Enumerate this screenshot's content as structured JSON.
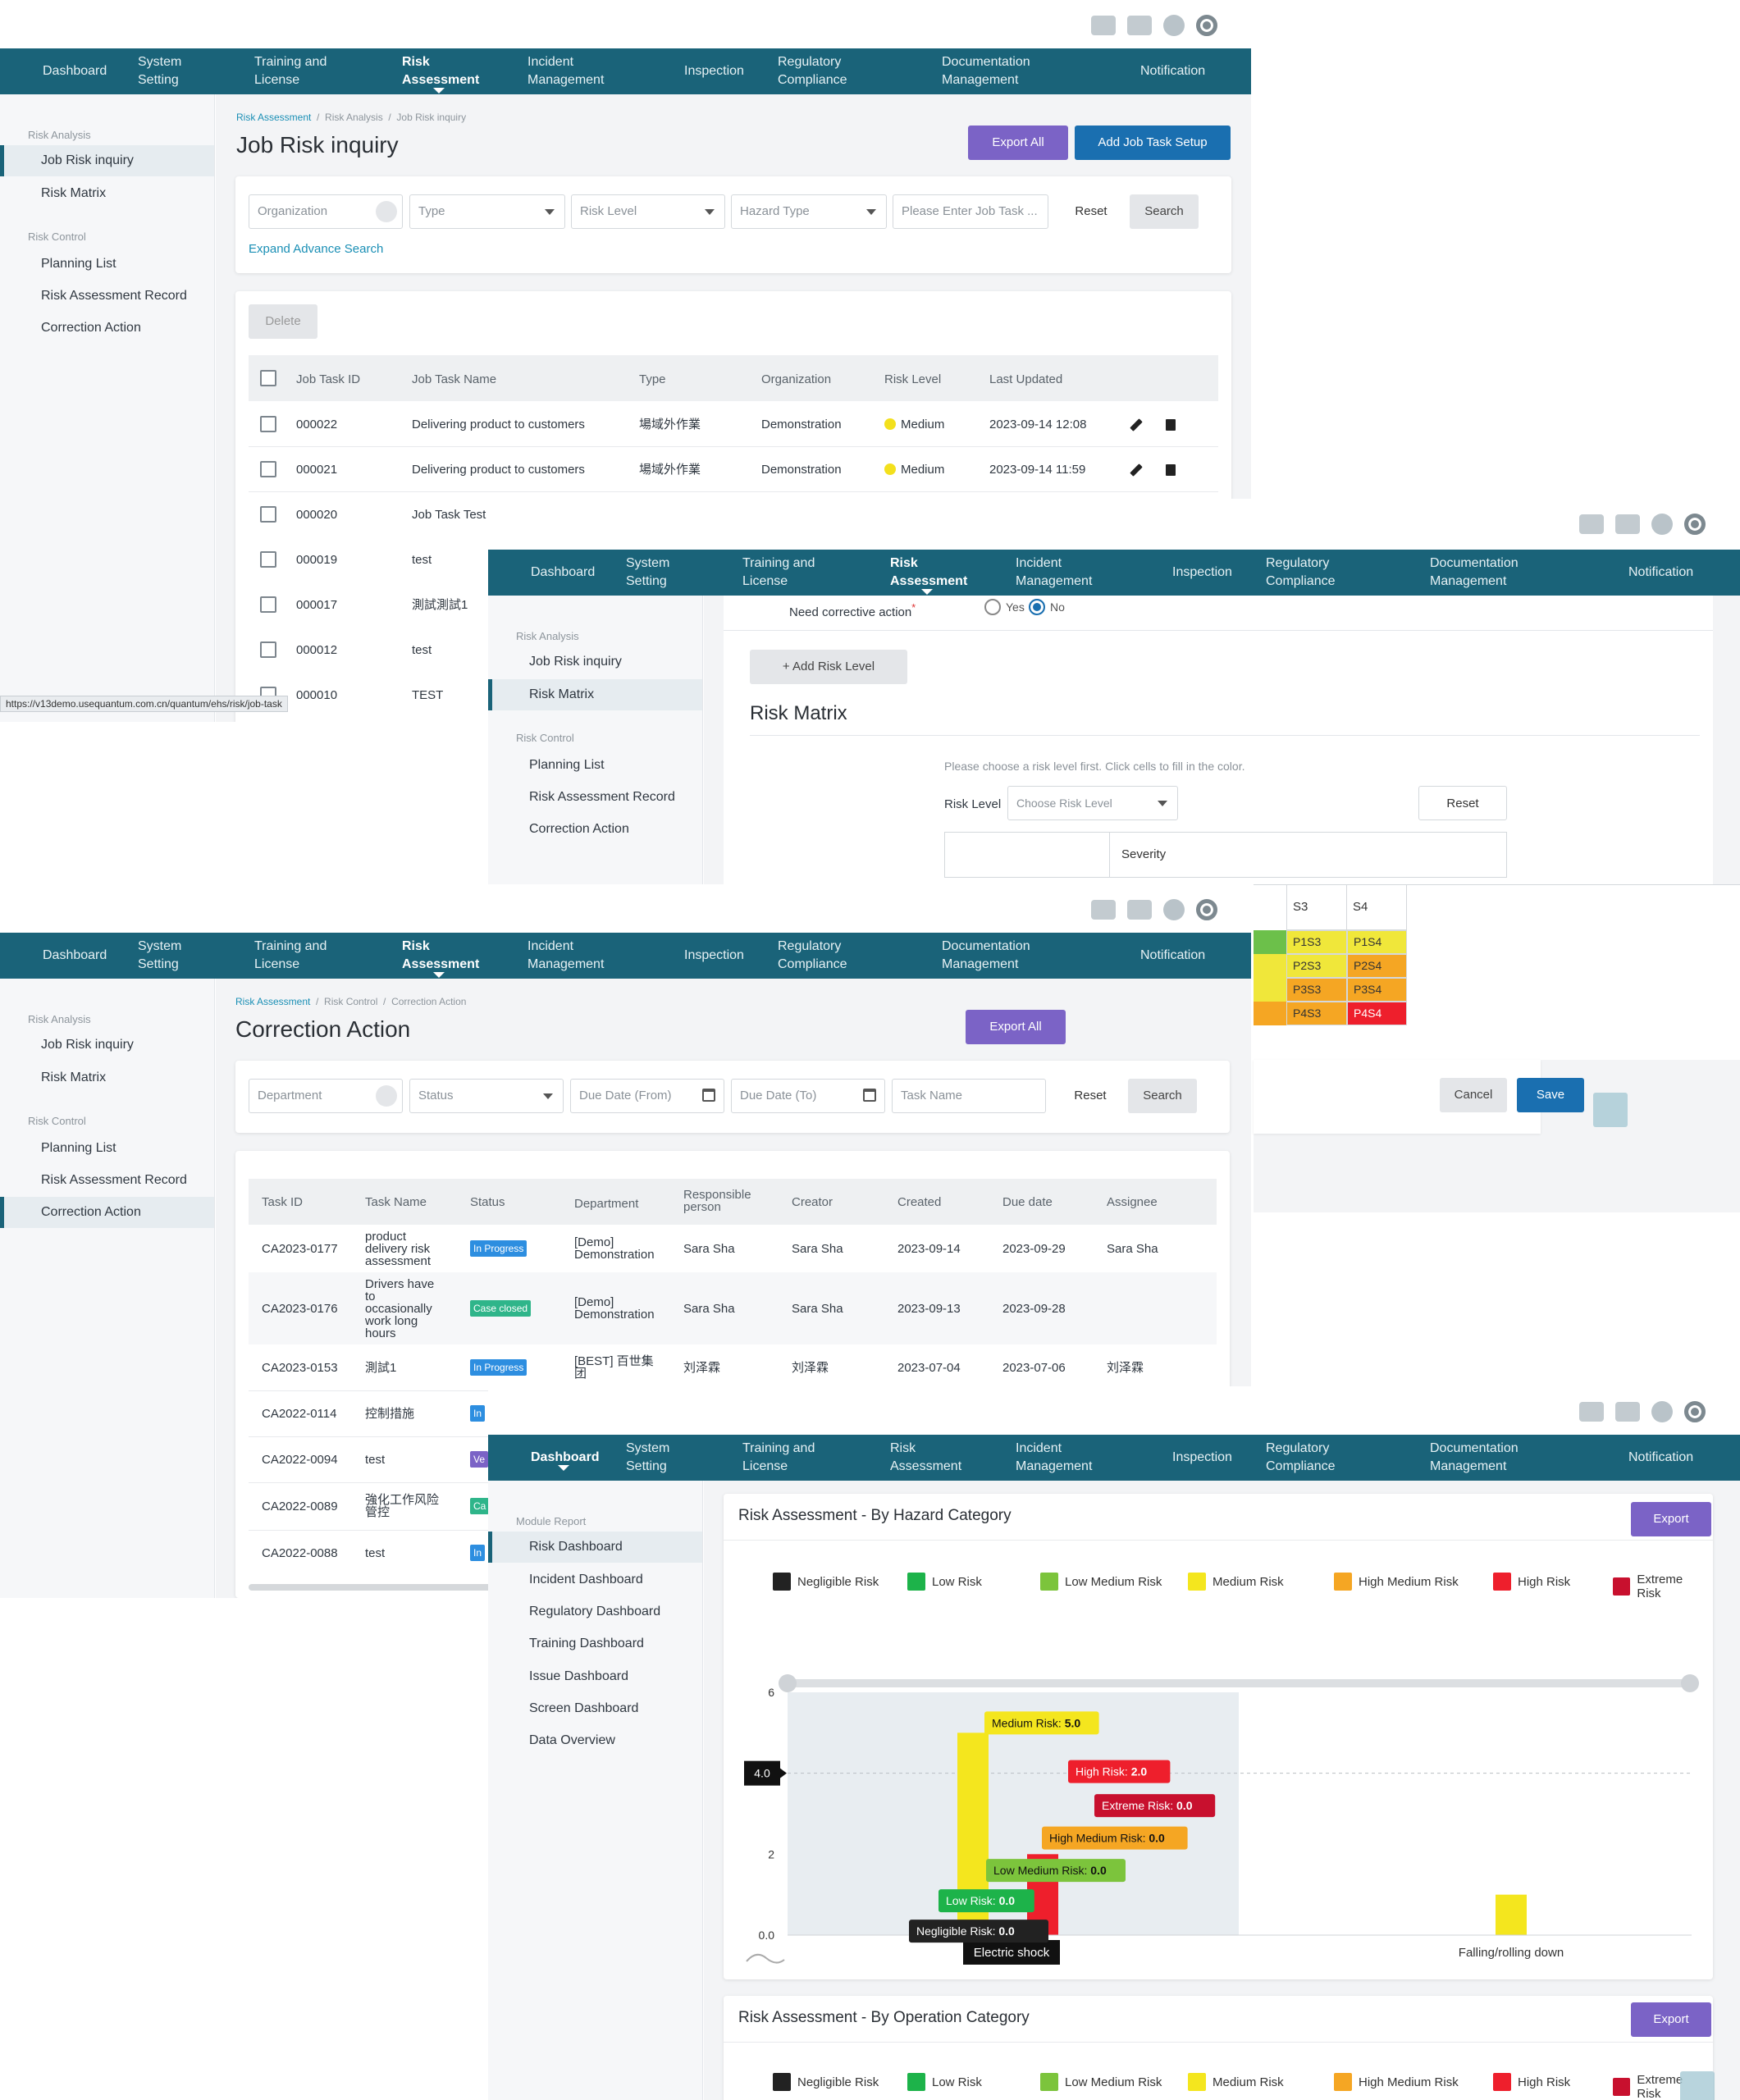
{
  "nav": {
    "items": [
      "Dashboard",
      "System\nSetting",
      "Training and\nLicense",
      "Risk\nAssessment",
      "Incident\nManagement",
      "Inspection",
      "Regulatory\nCompliance",
      "Documentation\nManagement",
      "Notification"
    ]
  },
  "sidebar_risk": {
    "group1": "Risk Analysis",
    "item_job_risk": "Job Risk inquiry",
    "item_risk_matrix": "Risk Matrix",
    "group2": "Risk Control",
    "item_planning": "Planning List",
    "item_record": "Risk Assessment Record",
    "item_correction": "Correction Action"
  },
  "sidebar_dashboard": {
    "group": "Module Report",
    "items": [
      "Risk Dashboard",
      "Incident Dashboard",
      "Regulatory Dashboard",
      "Training Dashboard",
      "Issue Dashboard",
      "Screen Dashboard",
      "Data Overview"
    ]
  },
  "job_risk": {
    "breadcrumb": [
      "Risk Assessment",
      "Risk Analysis",
      "Job Risk inquiry"
    ],
    "title": "Job Risk inquiry",
    "export_all": "Export All",
    "add_setup": "Add Job Task Setup",
    "filters": {
      "organization": "Organization",
      "type": "Type",
      "risk_level": "Risk Level",
      "hazard_type": "Hazard Type",
      "job_task": "Please Enter Job Task ...",
      "reset": "Reset",
      "search": "Search",
      "expand": "Expand Advance Search"
    },
    "delete": "Delete",
    "columns": [
      "Job Task ID",
      "Job Task Name",
      "Type",
      "Organization",
      "Risk Level",
      "Last Updated"
    ],
    "rows": [
      {
        "id": "000022",
        "name": "Delivering product to customers",
        "type": "場域外作業",
        "org": "Demonstration",
        "level": "Medium",
        "updated": "2023-09-14 12:08"
      },
      {
        "id": "000021",
        "name": "Delivering product to customers",
        "type": "場域外作業",
        "org": "Demonstration",
        "level": "Medium",
        "updated": "2023-09-14 11:59"
      },
      {
        "id": "000020",
        "name": "Job Task Test"
      },
      {
        "id": "000019",
        "name": "test"
      },
      {
        "id": "000017",
        "name": "測試測試1"
      },
      {
        "id": "000012",
        "name": "test"
      },
      {
        "id": "000010",
        "name": "TEST"
      }
    ],
    "status_url": "https://v13demo.usequantum.com.cn/quantum/ehs/risk/job-task"
  },
  "risk_matrix": {
    "corrective_label": "Need corrective action",
    "yes": "Yes",
    "no": "No",
    "add_risk_level": "Add Risk Level",
    "title": "Risk Matrix",
    "hint": "Please choose a risk level first. Click cells to fill in the color.",
    "risk_level_label": "Risk Level",
    "risk_level_placeholder": "Choose Risk Level",
    "reset": "Reset",
    "severity": "Severity",
    "col_headers": [
      "S3",
      "S4"
    ],
    "rows": [
      {
        "s3": "P1S3",
        "s4": "P1S4",
        "c3": "#f0e73a",
        "c4": "#f0e73a"
      },
      {
        "s3": "P2S3",
        "s4": "P2S4",
        "c3": "#f0e73a",
        "c4": "#f5a623"
      },
      {
        "s3": "P3S3",
        "s4": "P3S4",
        "c3": "#f5a623",
        "c4": "#f5a623"
      },
      {
        "s3": "P4S3",
        "s4": "P4S4",
        "c3": "#f5a623",
        "c4": "#ee1f2c"
      }
    ],
    "left_cell_colors": [
      "#6cc04a",
      "#f0e73a",
      "#f0e73a",
      "#f5a623"
    ],
    "cancel": "Cancel",
    "save": "Save"
  },
  "correction": {
    "breadcrumb": [
      "Risk Assessment",
      "Risk Control",
      "Correction Action"
    ],
    "title": "Correction Action",
    "export_all": "Export All",
    "filters": {
      "department": "Department",
      "status": "Status",
      "due_from": "Due Date (From)",
      "due_to": "Due Date (To)",
      "task_name": "Task Name",
      "reset": "Reset",
      "search": "Search"
    },
    "columns": [
      "Task ID",
      "Task Name",
      "Status",
      "Department",
      "Responsible\nperson",
      "Creator",
      "Created",
      "Due date",
      "Assignee"
    ],
    "rows": [
      {
        "id": "CA2023-0177",
        "name": "product\ndelivery risk\nassessment",
        "status": "In Progress",
        "dept": "[Demo]\nDemonstration",
        "resp": "Sara Sha",
        "creator": "Sara Sha",
        "created": "2023-09-14",
        "due": "2023-09-29",
        "assignee": "Sara Sha"
      },
      {
        "id": "CA2023-0176",
        "name": "Drivers have\nto\noccasionally\nwork long\nhours",
        "status": "Case closed",
        "dept": "[Demo]\nDemonstration",
        "resp": "Sara Sha",
        "creator": "Sara Sha",
        "created": "2023-09-13",
        "due": "2023-09-28",
        "assignee": ""
      },
      {
        "id": "CA2023-0153",
        "name": "測試1",
        "status": "In Progress",
        "dept": "[BEST] 百世集\n团",
        "resp": "刘泽霖",
        "creator": "刘泽霖",
        "created": "2023-07-04",
        "due": "2023-07-06",
        "assignee": "刘泽霖"
      },
      {
        "id": "CA2022-0114",
        "name": "控制措施",
        "status": "In"
      },
      {
        "id": "CA2022-0094",
        "name": "test",
        "status": "Ve"
      },
      {
        "id": "CA2022-0089",
        "name": "強化工作风险\n管控",
        "status": "Ca"
      },
      {
        "id": "CA2022-0088",
        "name": "test",
        "status": "In"
      }
    ]
  },
  "dashboard": {
    "card1_title": "Risk Assessment - By Hazard Category",
    "card2_title": "Risk Assessment - By Operation Category",
    "export": "Export",
    "legend": [
      {
        "name": "Negligible Risk",
        "color": "#222222"
      },
      {
        "name": "Low Risk",
        "color": "#1db34a"
      },
      {
        "name": "Low Medium Risk",
        "color": "#7cc43c"
      },
      {
        "name": "Medium Risk",
        "color": "#f4e61e"
      },
      {
        "name": "High Medium Risk",
        "color": "#f5a623"
      },
      {
        "name": "High Risk",
        "color": "#ee1f2c"
      },
      {
        "name": "Extreme Risk",
        "color": "#c8102e"
      }
    ],
    "pointer_value": "4.0",
    "tooltips": [
      {
        "label": "Medium Risk: ",
        "value": "5.0"
      },
      {
        "label": "High Risk: ",
        "value": "2.0"
      },
      {
        "label": "Extreme Risk: ",
        "value": "0.0"
      },
      {
        "label": "High Medium Risk: ",
        "value": "0.0"
      },
      {
        "label": "Low Medium Risk: ",
        "value": "0.0"
      },
      {
        "label": "Low Risk: ",
        "value": "0.0"
      },
      {
        "label": "Negligible Risk: ",
        "value": "0.0"
      }
    ],
    "hover_category": "Electric shock"
  },
  "chart_data": {
    "type": "bar",
    "title": "Risk Assessment - By Hazard Category",
    "categories": [
      "Electric shock",
      "Falling/rolling down"
    ],
    "series": [
      {
        "name": "Negligible Risk",
        "values": [
          0,
          0
        ]
      },
      {
        "name": "Low Risk",
        "values": [
          0,
          0
        ]
      },
      {
        "name": "Low Medium Risk",
        "values": [
          0,
          0
        ]
      },
      {
        "name": "Medium Risk",
        "values": [
          5,
          1
        ]
      },
      {
        "name": "High Medium Risk",
        "values": [
          0,
          0
        ]
      },
      {
        "name": "High Risk",
        "values": [
          2,
          0
        ]
      },
      {
        "name": "Extreme Risk",
        "values": [
          0,
          0
        ]
      }
    ],
    "yticks": [
      "0.0",
      "2",
      "4.0",
      "6"
    ],
    "ylim": [
      0,
      6
    ]
  }
}
